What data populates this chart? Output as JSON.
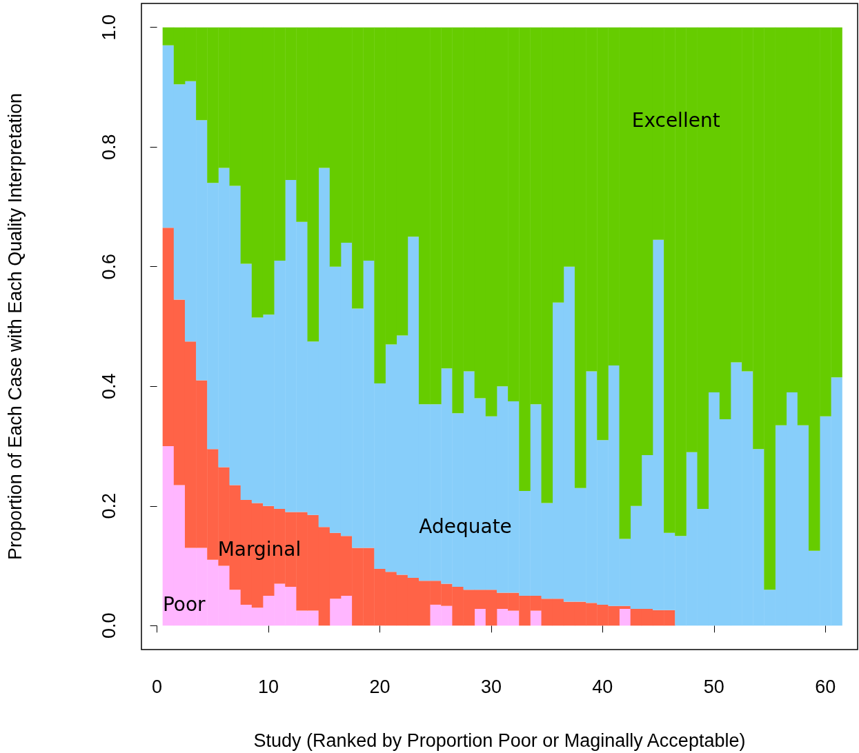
{
  "chart_data": {
    "type": "bar",
    "stacked": true,
    "xlabel": "Study (Ranked by Proportion Poor or Maginally Acceptable)",
    "ylabel": "Proportion of Each Case with Each Quality Interpretation",
    "x": [
      1,
      2,
      3,
      4,
      5,
      6,
      7,
      8,
      9,
      10,
      11,
      12,
      13,
      14,
      15,
      16,
      17,
      18,
      19,
      20,
      21,
      22,
      23,
      24,
      25,
      26,
      27,
      28,
      29,
      30,
      31,
      32,
      33,
      34,
      35,
      36,
      37,
      38,
      39,
      40,
      41,
      42,
      43,
      44,
      45,
      46,
      47,
      48,
      49,
      50,
      51,
      52,
      53,
      54,
      55,
      56,
      57,
      58,
      59,
      60,
      61
    ],
    "xlim": [
      -1.4,
      62.9
    ],
    "xticks": [
      0,
      10,
      20,
      30,
      40,
      50,
      60
    ],
    "ylim": [
      -0.04,
      1.04
    ],
    "yticks": [
      {
        "value": 0,
        "label": "0.0"
      },
      {
        "value": 0.2,
        "label": "0.2"
      },
      {
        "value": 0.4,
        "label": "0.4"
      },
      {
        "value": 0.6,
        "label": "0.6"
      },
      {
        "value": 0.8,
        "label": "0.8"
      },
      {
        "value": 1,
        "label": "1.0"
      }
    ],
    "series": [
      {
        "name": "Poor",
        "color": "#ffb6ff",
        "values": [
          0.3,
          0.235,
          0.13,
          0.13,
          0.11,
          0.1,
          0.06,
          0.035,
          0.03,
          0.05,
          0.07,
          0.065,
          0.025,
          0.025,
          0,
          0.045,
          0.05,
          0,
          0,
          0,
          0,
          0,
          0,
          0,
          0.035,
          0.033,
          0,
          0,
          0.028,
          0,
          0.028,
          0.025,
          0,
          0.025,
          0,
          0,
          0,
          0,
          0,
          0,
          0,
          0.028,
          0,
          0,
          0,
          0,
          0,
          0,
          0,
          0,
          0,
          0,
          0,
          0,
          0,
          0,
          0,
          0,
          0,
          0,
          0
        ]
      },
      {
        "name": "Marginal",
        "color": "#ff6347",
        "values": [
          0.365,
          0.31,
          0.345,
          0.28,
          0.185,
          0.165,
          0.175,
          0.175,
          0.175,
          0.15,
          0.125,
          0.125,
          0.165,
          0.16,
          0.165,
          0.11,
          0.1,
          0.13,
          0.13,
          0.095,
          0.09,
          0.085,
          0.08,
          0.075,
          0.04,
          0.037,
          0.065,
          0.06,
          0.032,
          0.06,
          0.027,
          0.03,
          0.05,
          0.025,
          0.045,
          0.045,
          0.04,
          0.04,
          0.038,
          0.035,
          0.033,
          0.005,
          0.028,
          0.028,
          0.026,
          0.026,
          0,
          0,
          0,
          0,
          0,
          0,
          0,
          0,
          0,
          0,
          0,
          0,
          0,
          0,
          0
        ]
      },
      {
        "name": "Adequate",
        "color": "#87cefa",
        "values": [
          0.305,
          0.36,
          0.435,
          0.435,
          0.445,
          0.5,
          0.5,
          0.395,
          0.31,
          0.32,
          0.415,
          0.555,
          0.485,
          0.29,
          0.6,
          0.445,
          0.49,
          0.4,
          0.48,
          0.31,
          0.38,
          0.4,
          0.57,
          0.295,
          0.295,
          0.36,
          0.29,
          0.365,
          0.32,
          0.29,
          0.345,
          0.32,
          0.175,
          0.32,
          0.16,
          0.495,
          0.56,
          0.19,
          0.387,
          0.275,
          0.402,
          0.112,
          0.172,
          0.257,
          0.619,
          0.129,
          0.15,
          0.29,
          0.195,
          0.39,
          0.345,
          0.44,
          0.425,
          0.295,
          0.06,
          0.335,
          0.39,
          0.335,
          0.125,
          0.35,
          0.415
        ]
      },
      {
        "name": "Excellent",
        "color": "#66cc00",
        "values": [
          0.03,
          0.095,
          0.09,
          0.155,
          0.26,
          0.235,
          0.265,
          0.395,
          0.485,
          0.48,
          0.39,
          0.255,
          0.325,
          0.525,
          0.235,
          0.4,
          0.36,
          0.47,
          0.39,
          0.595,
          0.53,
          0.515,
          0.35,
          0.63,
          0.63,
          0.57,
          0.645,
          0.575,
          0.62,
          0.65,
          0.6,
          0.625,
          0.775,
          0.63,
          0.795,
          0.46,
          0.4,
          0.77,
          0.575,
          0.69,
          0.565,
          0.855,
          0.8,
          0.715,
          0.355,
          0.845,
          0.85,
          0.71,
          0.805,
          0.61,
          0.655,
          0.56,
          0.575,
          0.705,
          0.94,
          0.665,
          0.61,
          0.665,
          0.875,
          0.65,
          0.585
        ]
      }
    ]
  }
}
